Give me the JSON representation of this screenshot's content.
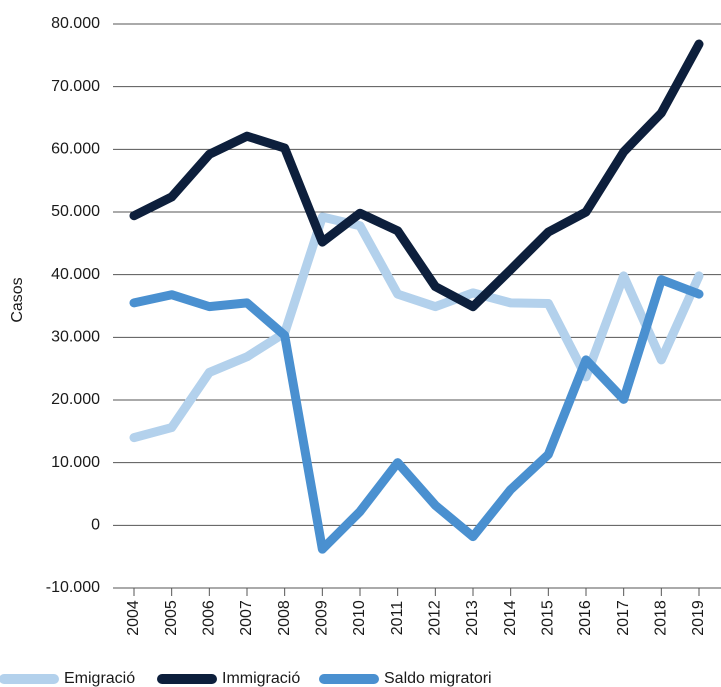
{
  "chart_data": {
    "type": "line",
    "ylabel": "Casos",
    "categories": [
      "2004",
      "2005",
      "2006",
      "2007",
      "2008",
      "2009",
      "2010",
      "2011",
      "2012",
      "2013",
      "2014",
      "2015",
      "2016",
      "2017",
      "2018",
      "2019"
    ],
    "series": [
      {
        "name": "Emigració",
        "color": "#b3d1ec",
        "values": [
          14000,
          15600,
          24400,
          26900,
          30700,
          49200,
          47800,
          36900,
          34900,
          37100,
          35500,
          35400,
          23700,
          39800,
          26400,
          39800
        ]
      },
      {
        "name": "Immigració",
        "color": "#0d1f3c",
        "values": [
          49400,
          52400,
          59200,
          62100,
          60200,
          45200,
          49800,
          47000,
          38100,
          34900,
          40800,
          46800,
          50000,
          59600,
          65800,
          76800
        ]
      },
      {
        "name": "Saldo migratori",
        "color": "#4a90d0",
        "values": [
          35500,
          36800,
          34900,
          35500,
          30300,
          -3800,
          2200,
          10000,
          3200,
          -1800,
          5700,
          11300,
          26400,
          20100,
          39200,
          36900
        ]
      }
    ],
    "ylim": [
      -10000,
      80000
    ],
    "yticks": [
      {
        "value": -10000,
        "label": "-10.000"
      },
      0,
      {
        "value": 10000,
        "label": "10.000"
      },
      {
        "value": 20000,
        "label": "20.000"
      },
      {
        "value": 30000,
        "label": "30.000"
      },
      {
        "value": 40000,
        "label": "40.000"
      },
      {
        "value": 50000,
        "label": "50.000"
      },
      {
        "value": 60000,
        "label": "60.000"
      },
      {
        "value": 70000,
        "label": "70.000"
      },
      {
        "value": 80000,
        "label": "80.000"
      }
    ],
    "grid": true,
    "legend": "bottom"
  }
}
